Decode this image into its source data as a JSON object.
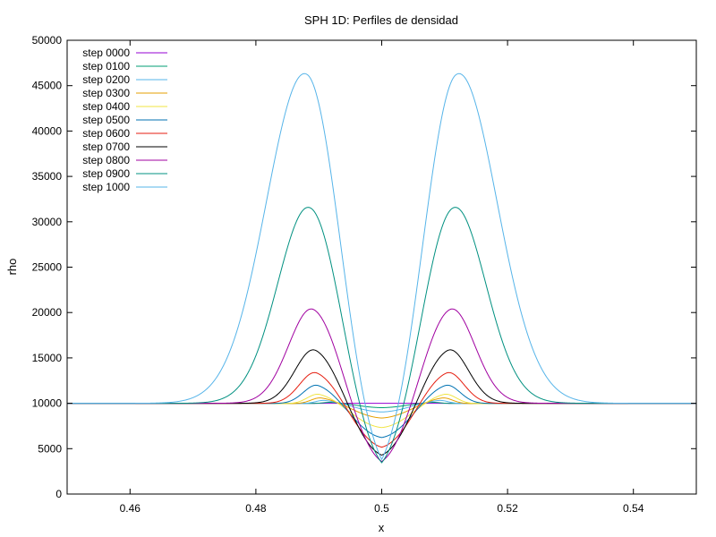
{
  "chart_data": {
    "type": "line",
    "title": "SPH 1D: Perfiles de densidad",
    "xlabel": "x",
    "ylabel": "rho",
    "xlim": [
      0.45,
      0.55
    ],
    "ylim": [
      0,
      50000
    ],
    "xticks": [
      0.46,
      0.48,
      0.5,
      0.52,
      0.54
    ],
    "xtick_labels": [
      "0.46",
      "0.48",
      "0.5",
      "0.52",
      "0.54"
    ],
    "yticks": [
      0,
      5000,
      10000,
      15000,
      20000,
      25000,
      30000,
      35000,
      40000,
      45000,
      50000
    ],
    "ytick_labels": [
      "0",
      "5000",
      "10000",
      "15000",
      "20000",
      "25000",
      "30000",
      "35000",
      "40000",
      "45000",
      "50000"
    ],
    "grid": false,
    "legend_position": "top-left",
    "series": [
      {
        "name": "step 0000",
        "color": "#9400d3",
        "peak": 10000,
        "peak_x": 0.5,
        "dip": 10000
      },
      {
        "name": "step 0100",
        "color": "#009e73",
        "peak": 10200,
        "peak_x": 0.508,
        "dip": 9500
      },
      {
        "name": "step 0200",
        "color": "#56b4e9",
        "peak": 10500,
        "peak_x": 0.509,
        "dip": 9000
      },
      {
        "name": "step 0300",
        "color": "#e69f00",
        "peak": 10900,
        "peak_x": 0.5095,
        "dip": 8300
      },
      {
        "name": "step 0400",
        "color": "#f0e442",
        "peak": 11500,
        "peak_x": 0.5098,
        "dip": 7200
      },
      {
        "name": "step 0500",
        "color": "#0072b2",
        "peak": 12700,
        "peak_x": 0.51,
        "dip": 6000
      },
      {
        "name": "step 0600",
        "color": "#e51e10",
        "peak": 14300,
        "peak_x": 0.5102,
        "dip": 4800
      },
      {
        "name": "step 0700",
        "color": "#000000",
        "peak": 17000,
        "peak_x": 0.5104,
        "dip": 3700
      },
      {
        "name": "step 0800",
        "color": "#a000a0",
        "peak": 21700,
        "peak_x": 0.5107,
        "dip": 2600
      },
      {
        "name": "step 0900",
        "color": "#009080",
        "peak": 33100,
        "peak_x": 0.5112,
        "dip": 1500
      },
      {
        "name": "step 1000",
        "color": "#56b4e9",
        "peak": 48000,
        "peak_x": 0.5118,
        "dip": 600
      }
    ]
  }
}
